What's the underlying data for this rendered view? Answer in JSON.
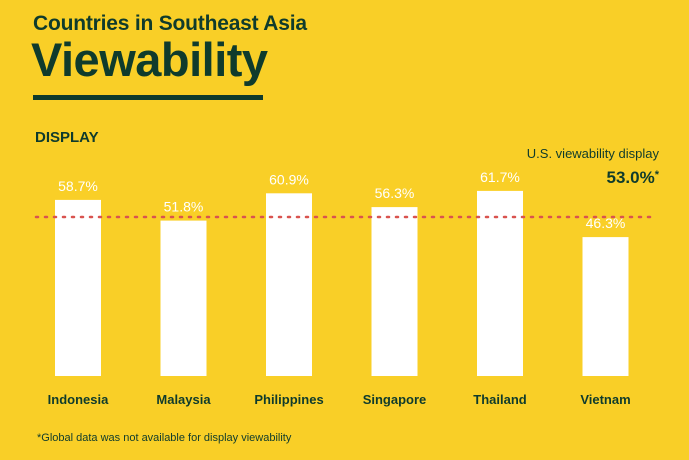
{
  "header": {
    "subtitle": "Countries in Southeast Asia",
    "title": "Viewability"
  },
  "section_label": "DISPLAY",
  "reference": {
    "label": "U.S. viewability display",
    "value_text": "53.0%",
    "marker": "*"
  },
  "footnote": "*Global data was not available for display viewability",
  "colors": {
    "background": "#F9CF27",
    "text": "#0F3B2C",
    "bar": "#FFFFFF",
    "reference_line": "#D9534F"
  },
  "chart_data": {
    "type": "bar",
    "title": "Viewability",
    "subtitle": "Countries in Southeast Asia",
    "xlabel": "",
    "ylabel": "",
    "grid": false,
    "categories": [
      "Indonesia",
      "Malaysia",
      "Philippines",
      "Singapore",
      "Thailand",
      "Vietnam"
    ],
    "values": [
      58.7,
      51.8,
      60.9,
      56.3,
      61.7,
      46.3
    ],
    "value_labels": [
      "58.7%",
      "51.8%",
      "60.9%",
      "56.3%",
      "61.7%",
      "46.3%"
    ],
    "reference_line": {
      "value": 53.0,
      "label": "U.S. viewability display"
    },
    "ylim": [
      0,
      62
    ]
  }
}
